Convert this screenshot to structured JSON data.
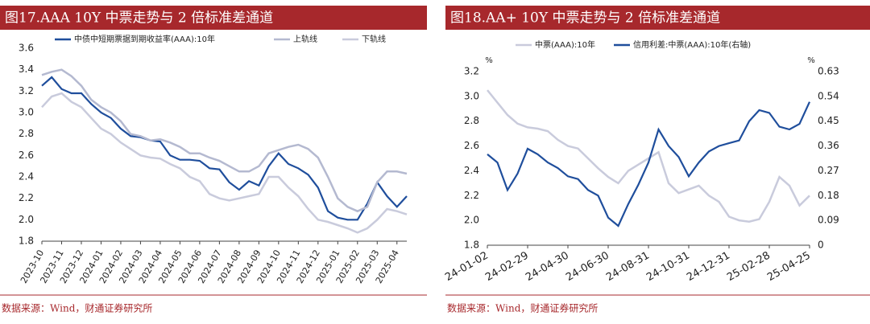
{
  "chart_data": [
    {
      "type": "line",
      "title": "图17.AAA 10Y 中票走势与 2 倍标准差通道",
      "source": "数据来源：Wind，财通证券研究所",
      "categories": [
        "2023-10",
        null,
        "2023-11",
        null,
        "2023-12",
        null,
        "2024-01",
        null,
        "2024-02",
        null,
        "2024-03",
        null,
        "2024-04",
        null,
        "2024-05",
        null,
        "2024-06",
        null,
        "2024-07",
        null,
        "2024-08",
        null,
        "2024-09",
        null,
        "2024-10",
        null,
        "2024-11",
        null,
        "2024-12",
        null,
        "2025-01",
        null,
        "2025-02",
        null,
        "2025-03",
        null,
        "2025-04",
        null
      ],
      "series": [
        {
          "name": "中债中短期票据到期收益率(AAA):10年",
          "color": "#1f4e9c",
          "values": [
            3.25,
            3.33,
            3.22,
            3.18,
            3.18,
            3.08,
            3.0,
            2.95,
            2.85,
            2.78,
            2.77,
            2.74,
            2.73,
            2.6,
            2.56,
            2.56,
            2.55,
            2.48,
            2.47,
            2.35,
            2.28,
            2.36,
            2.32,
            2.5,
            2.62,
            2.52,
            2.48,
            2.42,
            2.3,
            2.08,
            2.02,
            2.0,
            2.0,
            2.15,
            2.35,
            2.22,
            2.12,
            2.22
          ]
        },
        {
          "name": "上轨线",
          "color": "#b4b9d0",
          "values": [
            3.35,
            3.38,
            3.4,
            3.34,
            3.25,
            3.12,
            3.05,
            3.0,
            2.92,
            2.8,
            2.78,
            2.74,
            2.75,
            2.72,
            2.68,
            2.62,
            2.62,
            2.58,
            2.55,
            2.5,
            2.45,
            2.45,
            2.5,
            2.62,
            2.65,
            2.68,
            2.7,
            2.66,
            2.58,
            2.4,
            2.2,
            2.12,
            2.08,
            2.12,
            2.35,
            2.45,
            2.45,
            2.43
          ]
        },
        {
          "name": "下轨线",
          "color": "#c9cbdc",
          "values": [
            3.05,
            3.15,
            3.18,
            3.1,
            3.05,
            2.95,
            2.85,
            2.8,
            2.72,
            2.66,
            2.6,
            2.58,
            2.57,
            2.52,
            2.48,
            2.4,
            2.36,
            2.24,
            2.2,
            2.18,
            2.2,
            2.22,
            2.24,
            2.4,
            2.4,
            2.3,
            2.22,
            2.1,
            2.0,
            1.98,
            1.95,
            1.92,
            1.88,
            1.92,
            2.0,
            2.1,
            2.08,
            2.05
          ]
        }
      ],
      "ylim": [
        1.8,
        3.6
      ],
      "yticks": [
        1.8,
        {
          "value": 2,
          "label": "2.0"
        },
        2.2,
        2.4,
        2.6,
        2.8,
        {
          "value": 3,
          "label": "3.0"
        },
        3.2,
        3.4,
        3.6
      ],
      "grid": false
    },
    {
      "type": "line",
      "title": "图18.AA+ 10Y 中票走势与 2 倍标准差通道",
      "source": "数据来源：Wind，财通证券研究所",
      "y_unit": "%",
      "y2_unit": "%",
      "categories": [
        "24-01-02",
        null,
        null,
        null,
        "24-02-29",
        null,
        null,
        null,
        "24-04-30",
        null,
        null,
        null,
        "24-06-30",
        null,
        null,
        null,
        "24-08-31",
        null,
        null,
        null,
        "24-10-31",
        null,
        null,
        null,
        "24-12-31",
        null,
        null,
        null,
        "25-02-28",
        null,
        null,
        null,
        "25-04-25"
      ],
      "series": [
        {
          "name": "中票(AAA):10年",
          "color": "#c9cbdc",
          "values": [
            3.05,
            2.95,
            2.85,
            2.78,
            2.75,
            2.74,
            2.72,
            2.65,
            2.6,
            2.58,
            2.5,
            2.42,
            2.35,
            2.3,
            2.4,
            2.45,
            2.5,
            2.55,
            2.3,
            2.22,
            2.25,
            2.28,
            2.2,
            2.15,
            2.03,
            2.0,
            1.99,
            2.01,
            2.15,
            2.35,
            2.28,
            2.12,
            2.2
          ]
        },
        {
          "name": "信用利差:中票(AAA):10年(右轴)",
          "color": "#1f4e9c",
          "axis": "y2",
          "values": [
            0.33,
            0.3,
            0.2,
            0.26,
            0.35,
            0.33,
            0.3,
            0.28,
            0.25,
            0.24,
            0.2,
            0.18,
            0.1,
            0.07,
            0.15,
            0.22,
            0.3,
            0.42,
            0.36,
            0.32,
            0.25,
            0.3,
            0.34,
            0.36,
            0.37,
            0.38,
            0.45,
            0.49,
            0.48,
            0.43,
            0.42,
            0.44,
            0.52
          ]
        }
      ],
      "ylim": [
        1.8,
        3.2
      ],
      "yticks": [
        1.8,
        {
          "value": 2,
          "label": "2.0"
        },
        2.2,
        2.4,
        2.6,
        2.8,
        {
          "value": 3,
          "label": "3.0"
        },
        3.2
      ],
      "y2lim": [
        0,
        0.63
      ],
      "y2ticks": [
        0,
        0.09,
        0.18,
        0.27,
        0.36,
        0.45,
        0.54,
        0.63
      ],
      "grid": false
    }
  ]
}
